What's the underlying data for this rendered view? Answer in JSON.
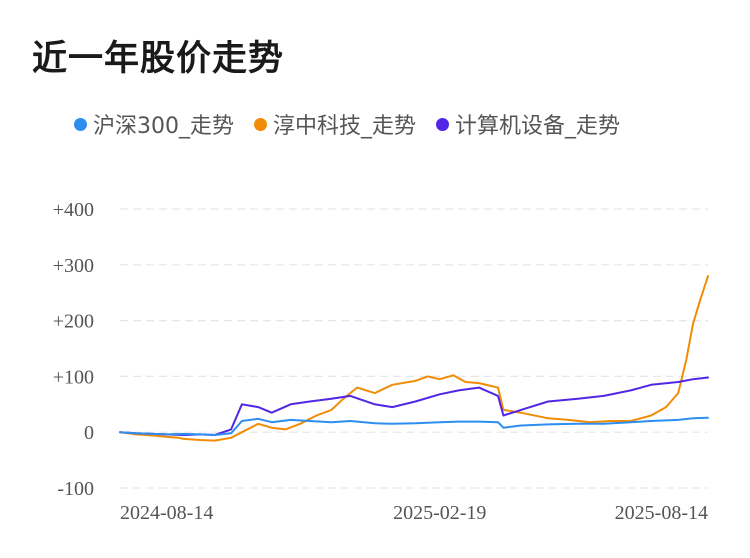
{
  "title": "近一年股价走势",
  "legend": [
    {
      "label": "沪深300_走势",
      "color": "#2d8ef0"
    },
    {
      "label": "淳中科技_走势",
      "color": "#f08c05"
    },
    {
      "label": "计算机设备_走势",
      "color": "#5226e6"
    }
  ],
  "chart_data": {
    "type": "line",
    "title": "近一年股价走势",
    "xlabel": "",
    "ylabel": "",
    "ylim": [
      -100,
      400
    ],
    "y_ticks": [
      400,
      300,
      200,
      100,
      0,
      -100
    ],
    "y_tick_labels": [
      "+400",
      "+300",
      "+200",
      "+100",
      "0",
      "-100"
    ],
    "x_range": [
      "2024-06-28",
      "2025-09-05"
    ],
    "x_tick_labels": [
      "2024-08-14",
      "2025-02-19",
      "2025-08-14"
    ],
    "grid": true,
    "legend_position": "top",
    "series": [
      {
        "name": "沪深300_走势",
        "color": "#2d8ef0",
        "points": [
          [
            "2024-06-28",
            0
          ],
          [
            "2024-07-10",
            -2
          ],
          [
            "2024-07-22",
            -3
          ],
          [
            "2024-08-01",
            -4
          ],
          [
            "2024-08-14",
            -3
          ],
          [
            "2024-08-26",
            -4
          ],
          [
            "2024-09-06",
            -5
          ],
          [
            "2024-09-18",
            -2
          ],
          [
            "2024-09-26",
            20
          ],
          [
            "2024-10-08",
            24
          ],
          [
            "2024-10-18",
            18
          ],
          [
            "2024-11-01",
            22
          ],
          [
            "2024-11-15",
            20
          ],
          [
            "2024-12-01",
            18
          ],
          [
            "2024-12-15",
            20
          ],
          [
            "2025-01-02",
            16
          ],
          [
            "2025-01-15",
            15
          ],
          [
            "2025-02-01",
            16
          ],
          [
            "2025-02-19",
            18
          ],
          [
            "2025-03-05",
            19
          ],
          [
            "2025-03-20",
            19
          ],
          [
            "2025-04-03",
            18
          ],
          [
            "2025-04-07",
            8
          ],
          [
            "2025-04-20",
            12
          ],
          [
            "2025-05-10",
            14
          ],
          [
            "2025-06-01",
            15
          ],
          [
            "2025-06-20",
            15
          ],
          [
            "2025-07-10",
            18
          ],
          [
            "2025-07-25",
            20
          ],
          [
            "2025-08-14",
            22
          ],
          [
            "2025-08-25",
            25
          ],
          [
            "2025-09-05",
            26
          ]
        ]
      },
      {
        "name": "淳中科技_走势",
        "color": "#f08c05",
        "points": [
          [
            "2024-06-28",
            0
          ],
          [
            "2024-07-10",
            -4
          ],
          [
            "2024-07-22",
            -6
          ],
          [
            "2024-08-01",
            -8
          ],
          [
            "2024-08-10",
            -10
          ],
          [
            "2024-08-14",
            -12
          ],
          [
            "2024-08-26",
            -14
          ],
          [
            "2024-09-06",
            -15
          ],
          [
            "2024-09-18",
            -10
          ],
          [
            "2024-09-26",
            0
          ],
          [
            "2024-10-08",
            15
          ],
          [
            "2024-10-18",
            8
          ],
          [
            "2024-10-28",
            5
          ],
          [
            "2024-11-08",
            15
          ],
          [
            "2024-11-20",
            30
          ],
          [
            "2024-12-01",
            40
          ],
          [
            "2024-12-10",
            60
          ],
          [
            "2024-12-20",
            80
          ],
          [
            "2025-01-02",
            70
          ],
          [
            "2025-01-15",
            85
          ],
          [
            "2025-02-01",
            92
          ],
          [
            "2025-02-10",
            100
          ],
          [
            "2025-02-19",
            95
          ],
          [
            "2025-03-01",
            102
          ],
          [
            "2025-03-10",
            90
          ],
          [
            "2025-03-20",
            88
          ],
          [
            "2025-04-03",
            80
          ],
          [
            "2025-04-07",
            40
          ],
          [
            "2025-04-20",
            35
          ],
          [
            "2025-05-10",
            25
          ],
          [
            "2025-05-25",
            22
          ],
          [
            "2025-06-10",
            18
          ],
          [
            "2025-06-25",
            20
          ],
          [
            "2025-07-10",
            20
          ],
          [
            "2025-07-25",
            30
          ],
          [
            "2025-08-05",
            45
          ],
          [
            "2025-08-14",
            70
          ],
          [
            "2025-08-20",
            130
          ],
          [
            "2025-08-25",
            195
          ],
          [
            "2025-08-30",
            235
          ],
          [
            "2025-09-05",
            280
          ]
        ]
      },
      {
        "name": "计算机设备_走势",
        "color": "#5226e6",
        "points": [
          [
            "2024-06-28",
            0
          ],
          [
            "2024-07-10",
            -2
          ],
          [
            "2024-07-22",
            -3
          ],
          [
            "2024-08-01",
            -4
          ],
          [
            "2024-08-14",
            -5
          ],
          [
            "2024-08-26",
            -4
          ],
          [
            "2024-09-06",
            -5
          ],
          [
            "2024-09-18",
            5
          ],
          [
            "2024-09-26",
            50
          ],
          [
            "2024-10-08",
            45
          ],
          [
            "2024-10-18",
            35
          ],
          [
            "2024-11-01",
            50
          ],
          [
            "2024-11-15",
            55
          ],
          [
            "2024-12-01",
            60
          ],
          [
            "2024-12-15",
            65
          ],
          [
            "2025-01-02",
            50
          ],
          [
            "2025-01-15",
            45
          ],
          [
            "2025-02-01",
            55
          ],
          [
            "2025-02-19",
            68
          ],
          [
            "2025-03-05",
            75
          ],
          [
            "2025-03-20",
            80
          ],
          [
            "2025-04-03",
            65
          ],
          [
            "2025-04-07",
            30
          ],
          [
            "2025-04-20",
            40
          ],
          [
            "2025-05-10",
            55
          ],
          [
            "2025-06-01",
            60
          ],
          [
            "2025-06-20",
            65
          ],
          [
            "2025-07-10",
            75
          ],
          [
            "2025-07-25",
            85
          ],
          [
            "2025-08-14",
            90
          ],
          [
            "2025-08-25",
            95
          ],
          [
            "2025-09-05",
            98
          ]
        ]
      }
    ]
  }
}
